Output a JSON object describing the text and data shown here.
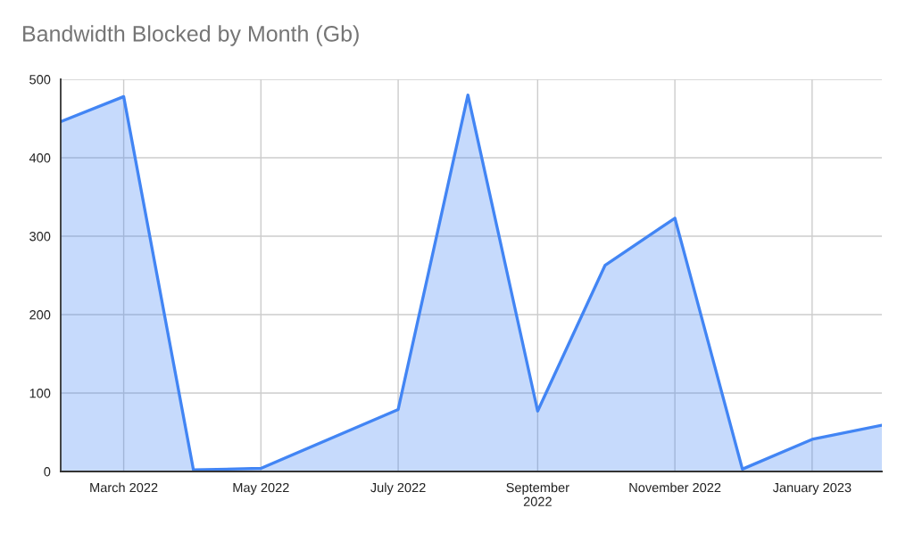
{
  "chart_data": {
    "type": "area",
    "title": "Bandwidth Blocked by Month (Gb)",
    "x": [
      "2022-02",
      "2022-03",
      "2022-04",
      "2022-05",
      "2022-07",
      "2022-08",
      "2022-09",
      "2022-10",
      "2022-11",
      "2022-12",
      "2023-01",
      "2023-02"
    ],
    "series": [
      {
        "color": "#4285f4",
        "values": [
          446,
          478,
          2,
          4,
          79,
          480,
          77,
          263,
          323,
          3,
          41,
          59
        ]
      }
    ],
    "xlim": [
      "2022-02",
      "2023-02"
    ],
    "xticks": [
      {
        "value": "2022-03",
        "label": "March 2022"
      },
      {
        "value": "2022-05",
        "label": "May 2022"
      },
      {
        "value": "2022-07",
        "label": "July 2022"
      },
      {
        "value": "2022-09",
        "label": "September\n2022"
      },
      {
        "value": "2022-11",
        "label": "November 2022"
      },
      {
        "value": "2023-01",
        "label": "January 2023"
      }
    ],
    "ylim": [
      0,
      500
    ],
    "yticks": [
      0,
      100,
      200,
      300,
      400,
      500
    ],
    "grid": true
  }
}
